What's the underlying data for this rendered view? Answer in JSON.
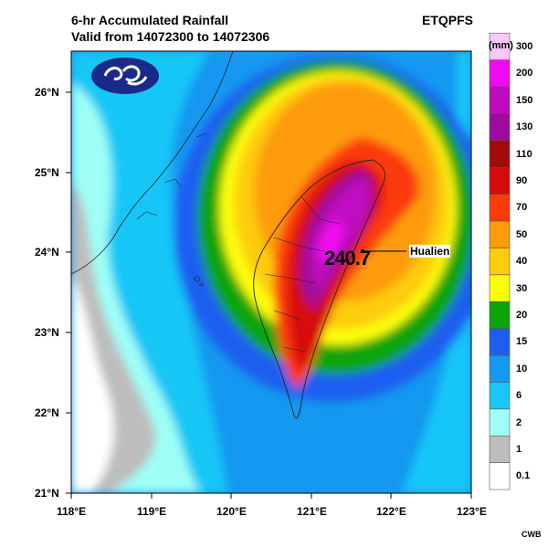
{
  "title_line1": "6-hr Accumulated Rainfall",
  "title_line2": "Valid from 14072300 to 14072306",
  "model": "ETQPFS",
  "unit": "(mm)",
  "credit": "CWB",
  "latitudes": [
    "26°N",
    "25°N",
    "24°N",
    "23°N",
    "22°N",
    "21°N"
  ],
  "longitudes": [
    "118°E",
    "119°E",
    "120°E",
    "121°E",
    "122°E",
    "123°E"
  ],
  "annotation": {
    "value": "240.7",
    "station": "Hualien"
  },
  "colorbar": [
    {
      "label": "0.1",
      "color": "#ffffff"
    },
    {
      "label": "1",
      "color": "#bdbdbd"
    },
    {
      "label": "2",
      "color": "#9ffff7"
    },
    {
      "label": "6",
      "color": "#19c6f6"
    },
    {
      "label": "10",
      "color": "#1598f0"
    },
    {
      "label": "15",
      "color": "#1c5ef0"
    },
    {
      "label": "20",
      "color": "#0aa40a"
    },
    {
      "label": "30",
      "color": "#fdfd0a"
    },
    {
      "label": "40",
      "color": "#fdcc0a"
    },
    {
      "label": "50",
      "color": "#fd9b0a"
    },
    {
      "label": "70",
      "color": "#fc3a0a"
    },
    {
      "label": "90",
      "color": "#d50a0a"
    },
    {
      "label": "110",
      "color": "#a30a0a"
    },
    {
      "label": "130",
      "color": "#9d0a9d"
    },
    {
      "label": "150",
      "color": "#c00ac0"
    },
    {
      "label": "200",
      "color": "#f00af0"
    },
    {
      "label": "300",
      "color": "#fbc8fb"
    }
  ]
}
